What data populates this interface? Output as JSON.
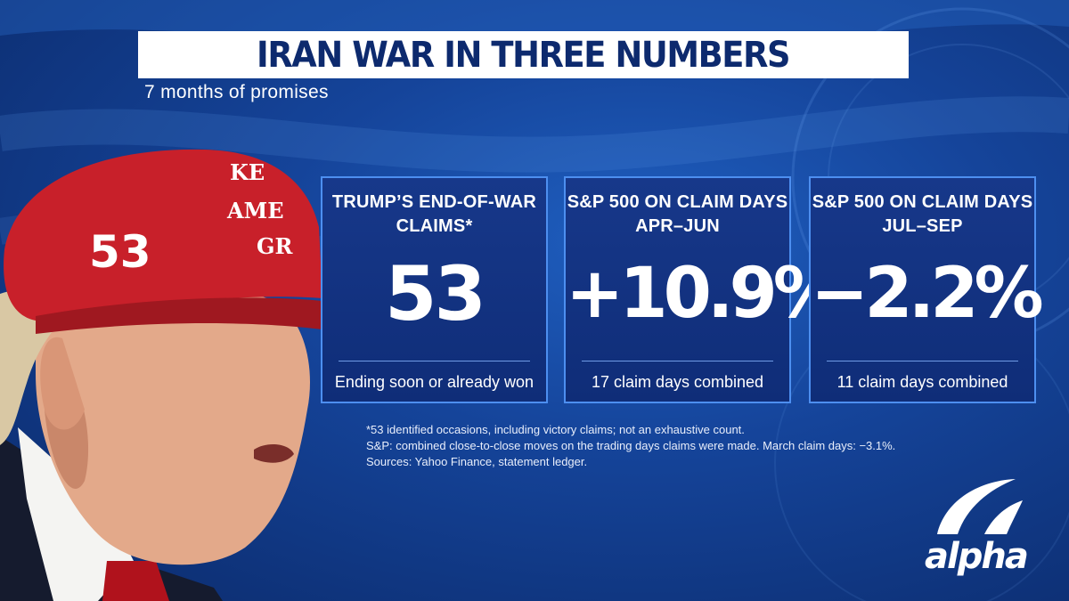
{
  "header": {
    "title": "IRAN WAR IN THREE NUMBERS",
    "subtitle": "7 months of promises"
  },
  "photo": {
    "hat_number": "53",
    "hat_text_line1": "KE",
    "hat_text_line2": "AME",
    "hat_text_line3": "GR"
  },
  "cards": [
    {
      "label": "TRUMP’S END-OF-WAR\nCLAIMS*",
      "value": "53",
      "footer": "Ending soon or already won"
    },
    {
      "label": "S&P 500 ON CLAIM DAYS\nAPR–JUN",
      "value": "+10.9%",
      "footer": "17 claim days combined"
    },
    {
      "label": "S&P 500 ON CLAIM DAYS\nJUL–SEP",
      "value": "−2.2%",
      "footer": "11 claim days combined"
    }
  ],
  "footnotes": [
    "*53 identified occasions, including victory claims; not an exhaustive count.",
    "S&P: combined close-to-close moves on the trading days claims were made. March claim days: −3.1%.",
    "Sources: Yahoo Finance, statement ledger."
  ],
  "logo": {
    "text": "alpha"
  },
  "colors": {
    "background": "#15449a",
    "card_border": "#4d8ff0",
    "title_text": "#0d2a6e",
    "hat_red": "#c8202a"
  }
}
